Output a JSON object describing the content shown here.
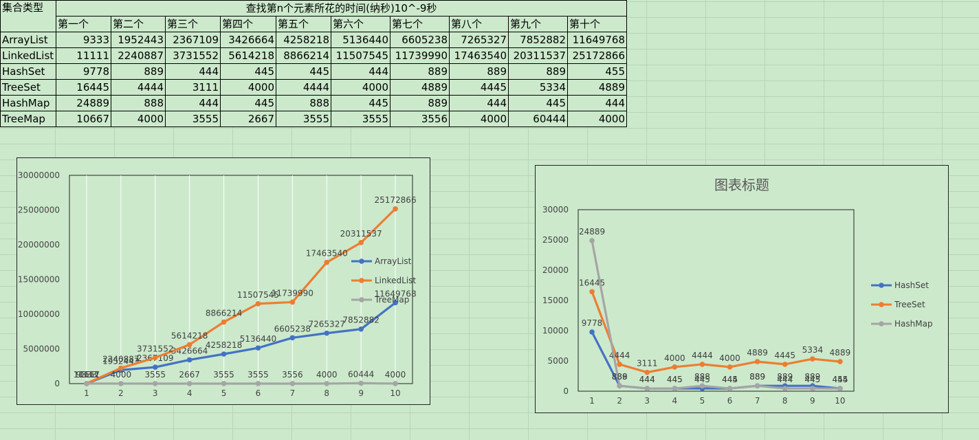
{
  "table": {
    "corner": "集合类型",
    "title": "查找第n个元素所花的时间(纳秒)10^-9秒",
    "columns": [
      "第一个",
      "第二个",
      "第三个",
      "第四个",
      "第五个",
      "第六个",
      "第七个",
      "第八个",
      "第九个",
      "第十个"
    ],
    "rows": [
      {
        "name": "ArrayList",
        "values": [
          "9333",
          "1952443",
          "2367109",
          "3426664",
          "4258218",
          "5136440",
          "6605238",
          "7265327",
          "7852882",
          "11649768"
        ]
      },
      {
        "name": "LinkedList",
        "values": [
          "11111",
          "2240887",
          "3731552",
          "5614218",
          "8866214",
          "11507545",
          "11739990",
          "17463540",
          "20311537",
          "25172866"
        ]
      },
      {
        "name": "HashSet",
        "values": [
          "9778",
          "889",
          "444",
          "445",
          "445",
          "444",
          "889",
          "889",
          "889",
          "455"
        ]
      },
      {
        "name": "TreeSet",
        "values": [
          "16445",
          "4444",
          "3111",
          "4000",
          "4444",
          "4000",
          "4889",
          "4445",
          "5334",
          "4889"
        ]
      },
      {
        "name": "HashMap",
        "values": [
          "24889",
          "888",
          "444",
          "445",
          "888",
          "445",
          "889",
          "444",
          "445",
          "444"
        ]
      },
      {
        "name": "TreeMap",
        "values": [
          "10667",
          "4000",
          "3555",
          "2667",
          "3555",
          "3555",
          "3556",
          "4000",
          "60444",
          "4000"
        ]
      }
    ]
  },
  "chart_data": [
    {
      "type": "line",
      "title": "",
      "categories": [
        "1",
        "2",
        "3",
        "4",
        "5",
        "6",
        "7",
        "8",
        "9",
        "10"
      ],
      "ylim": [
        0,
        30000000
      ],
      "yticks": [
        "0",
        "5000000",
        "10000000",
        "15000000",
        "20000000",
        "25000000",
        "30000000"
      ],
      "grid": "vertical",
      "legend": "right",
      "series": [
        {
          "name": "ArrayList",
          "color": "#4472c4",
          "values": [
            9333,
            1952443,
            2367109,
            3426664,
            4258218,
            5136440,
            6605238,
            7265327,
            7852882,
            11649768
          ]
        },
        {
          "name": "LinkedList",
          "color": "#ed7d31",
          "values": [
            11111,
            2240887,
            3731552,
            5614218,
            8866214,
            11507545,
            11739990,
            17463540,
            20311537,
            25172866
          ]
        },
        {
          "name": "TreeMap",
          "color": "#a5a5a5",
          "values": [
            10667,
            4000,
            3555,
            2667,
            3555,
            3555,
            3556,
            4000,
            60444,
            4000
          ]
        }
      ]
    },
    {
      "type": "line",
      "title": "图表标题",
      "categories": [
        "1",
        "2",
        "3",
        "4",
        "5",
        "6",
        "7",
        "8",
        "9",
        "10"
      ],
      "ylim": [
        0,
        30000
      ],
      "yticks": [
        "0",
        "5000",
        "10000",
        "15000",
        "20000",
        "25000",
        "30000"
      ],
      "grid": "none",
      "legend": "right",
      "series": [
        {
          "name": "HashSet",
          "color": "#4472c4",
          "values": [
            9778,
            889,
            444,
            445,
            445,
            444,
            889,
            889,
            889,
            455
          ]
        },
        {
          "name": "TreeSet",
          "color": "#ed7d31",
          "values": [
            16445,
            4444,
            3111,
            4000,
            4444,
            4000,
            4889,
            4445,
            5334,
            4889
          ]
        },
        {
          "name": "HashMap",
          "color": "#a5a5a5",
          "values": [
            24889,
            888,
            444,
            445,
            888,
            445,
            889,
            444,
            445,
            444
          ]
        }
      ]
    }
  ]
}
